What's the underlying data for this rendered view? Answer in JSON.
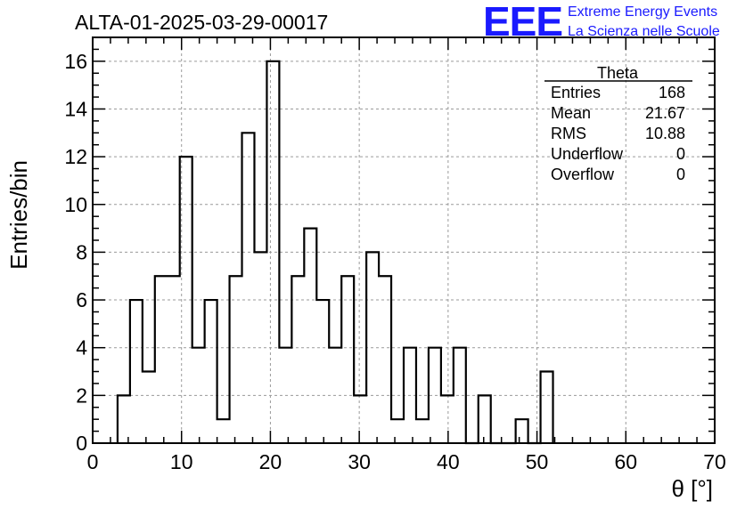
{
  "chart_data": {
    "type": "bar",
    "title": "ALTA-01-2025-03-29-00017",
    "xlabel": "θ [°]",
    "ylabel": "Entries/bin",
    "xlim": [
      0,
      70
    ],
    "ylim": [
      0,
      17
    ],
    "x_ticks": [
      "0",
      "10",
      "20",
      "30",
      "40",
      "50",
      "60",
      "70"
    ],
    "y_ticks": [
      "0",
      "2",
      "4",
      "6",
      "8",
      "10",
      "12",
      "14",
      "16"
    ],
    "grid": true,
    "bin_width": 1.4,
    "x_bin_start": 2.8,
    "values": [
      2,
      6,
      3,
      7,
      7,
      12,
      4,
      6,
      1,
      7,
      13,
      8,
      16,
      4,
      7,
      9,
      6,
      4,
      7,
      2,
      8,
      7,
      1,
      4,
      1,
      4,
      2,
      4,
      0,
      2,
      0,
      0,
      1,
      0,
      3
    ],
    "stats": {
      "name": "Theta",
      "rows": [
        {
          "label": "Entries",
          "value": "168"
        },
        {
          "label": "Mean",
          "value": "21.67"
        },
        {
          "label": "RMS",
          "value": "10.88"
        },
        {
          "label": "Underflow",
          "value": "0"
        },
        {
          "label": "Overflow",
          "value": "0"
        }
      ]
    }
  },
  "logo": {
    "letters": "EEE",
    "line1": "Extreme Energy Events",
    "line2": "La Scienza nelle Scuole",
    "color": "#1a1aff"
  }
}
